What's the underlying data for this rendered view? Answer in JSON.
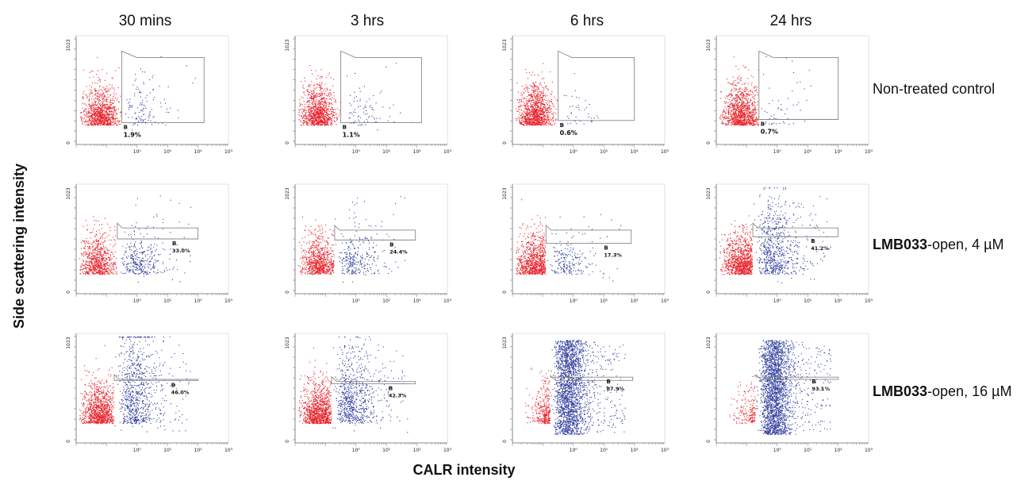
{
  "chart_data": {
    "type": "scatter",
    "column_titles": [
      "30 mins",
      "3 hrs",
      "6 hrs",
      "24 hrs"
    ],
    "row_labels": [
      {
        "bold": "",
        "normal": "Non-treated control"
      },
      {
        "bold": "LMB033",
        "normal": "-open, 4 µM"
      },
      {
        "bold": "LMB033",
        "normal": "-open, 16 µM"
      }
    ],
    "xlabel": "CALR intensity",
    "ylabel": "Side scattering intensity",
    "x_scale": "log",
    "xlim": [
      0.01,
      1000
    ],
    "x_tick_labels": [
      "10⁰",
      "10¹",
      "10²",
      "10³"
    ],
    "ylim": [
      0,
      1023
    ],
    "y_tick_labels": [
      "0",
      "1023"
    ],
    "gate_label": "B",
    "colors": {
      "outside_gate": "#e8222a",
      "inside_gate": "#2f3d9c",
      "gate": "#888888"
    },
    "gated_percent": [
      [
        "1.9%",
        "1.1%",
        "0.6%",
        "0.7%"
      ],
      [
        "33.0%",
        "24.4%",
        "17.3%",
        "41.2%"
      ],
      [
        "46.0%",
        "42.3%",
        "87.9%",
        "93.1%"
      ]
    ]
  }
}
